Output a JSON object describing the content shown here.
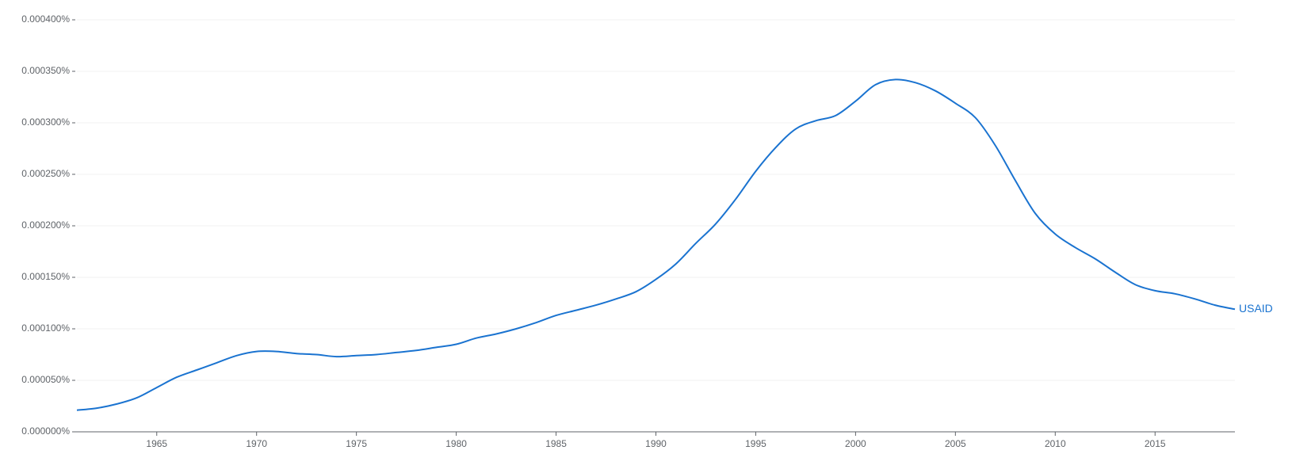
{
  "chart_data": {
    "type": "line",
    "x": [
      1961,
      1962,
      1963,
      1964,
      1965,
      1966,
      1967,
      1968,
      1969,
      1970,
      1971,
      1972,
      1973,
      1974,
      1975,
      1976,
      1977,
      1978,
      1979,
      1980,
      1981,
      1982,
      1983,
      1984,
      1985,
      1986,
      1987,
      1988,
      1989,
      1990,
      1991,
      1992,
      1993,
      1994,
      1995,
      1996,
      1997,
      1998,
      1999,
      2000,
      2001,
      2002,
      2003,
      2004,
      2005,
      2006,
      2007,
      2008,
      2009,
      2010,
      2011,
      2012,
      2013,
      2014,
      2015,
      2016,
      2017,
      2018,
      2019
    ],
    "series": [
      {
        "name": "USAID",
        "color": "#1a73d0",
        "values": [
          2.1e-05,
          2.3e-05,
          2.7e-05,
          3.3e-05,
          4.3e-05,
          5.3e-05,
          6e-05,
          6.7e-05,
          7.4e-05,
          7.8e-05,
          7.8e-05,
          7.6e-05,
          7.5e-05,
          7.3e-05,
          7.4e-05,
          7.5e-05,
          7.7e-05,
          7.9e-05,
          8.2e-05,
          8.5e-05,
          9.1e-05,
          9.5e-05,
          0.0001,
          0.000106,
          0.000113,
          0.000118,
          0.000123,
          0.000129,
          0.000136,
          0.000148,
          0.000163,
          0.000183,
          0.000202,
          0.000226,
          0.000253,
          0.000276,
          0.000294,
          0.000302,
          0.000307,
          0.000321,
          0.000337,
          0.000342,
          0.000339,
          0.000331,
          0.000319,
          0.000305,
          0.000278,
          0.000244,
          0.000212,
          0.000192,
          0.000179,
          0.000168,
          0.000155,
          0.000143,
          0.000137,
          0.000134,
          0.000129,
          0.000123,
          0.000119
        ]
      }
    ],
    "xlim": [
      1961,
      2019
    ],
    "xticks": [
      1965,
      1970,
      1975,
      1980,
      1985,
      1990,
      1995,
      2000,
      2005,
      2010,
      2015
    ],
    "ylim": [
      0,
      0.0004
    ],
    "yticks": [
      {
        "value": 0,
        "label": "0.000000%"
      },
      {
        "value": 5e-05,
        "label": "0.000050%"
      },
      {
        "value": 0.0001,
        "label": "0.000100%"
      },
      {
        "value": 0.00015,
        "label": "0.000150%"
      },
      {
        "value": 0.0002,
        "label": "0.000200%"
      },
      {
        "value": 0.00025,
        "label": "0.000250%"
      },
      {
        "value": 0.0003,
        "label": "0.000300%"
      },
      {
        "value": 0.00035,
        "label": "0.000350%"
      },
      {
        "value": 0.0004,
        "label": "0.000400%"
      }
    ],
    "grid": true
  }
}
